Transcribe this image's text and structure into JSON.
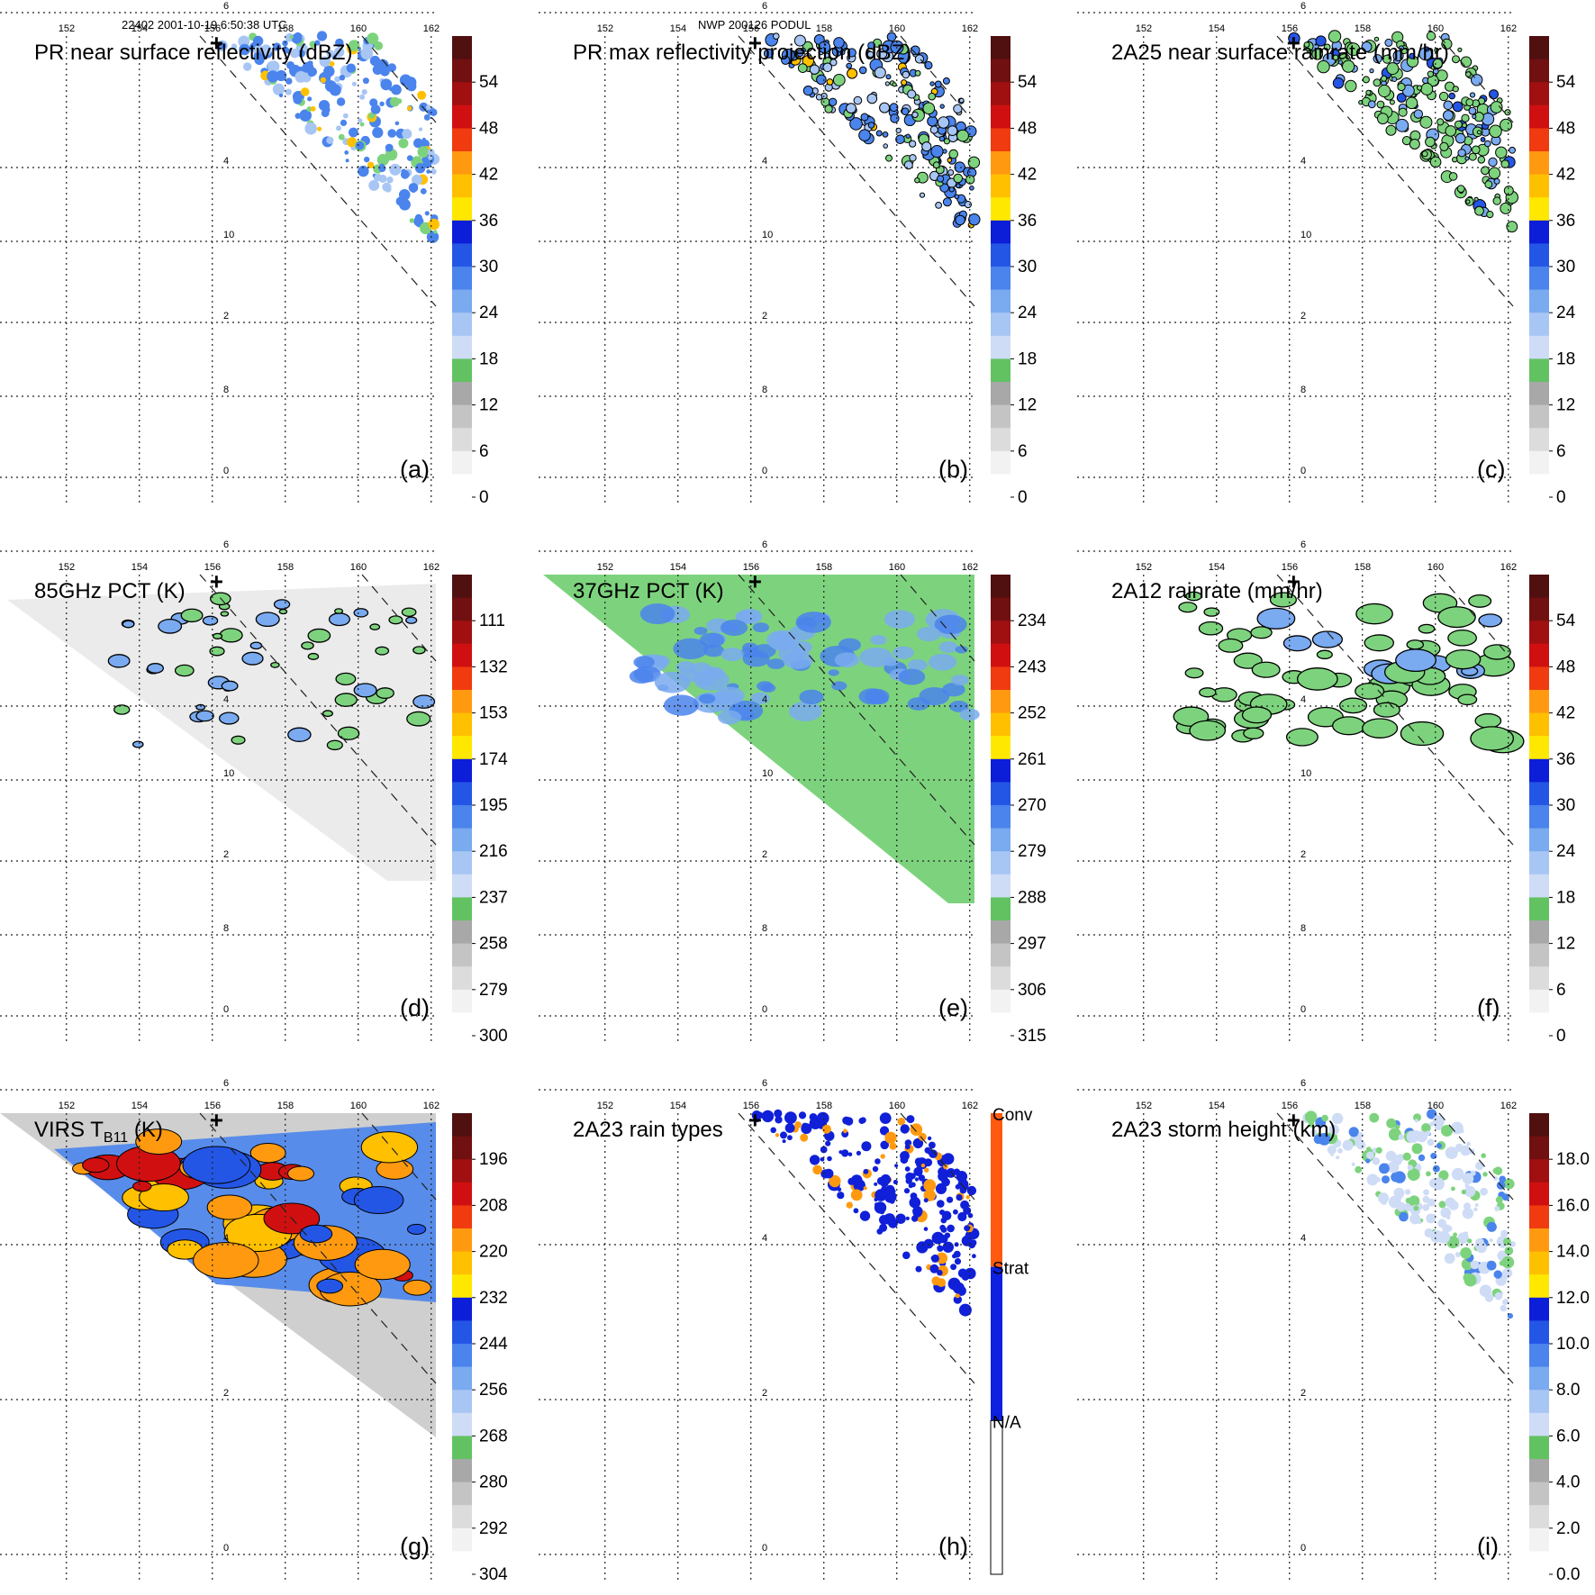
{
  "header": {
    "left": "22402 2001-10-19 6:50:38 UTC",
    "center": "NWP 200126 PODUL"
  },
  "map": {
    "lon_ticks": [
      "152",
      "154",
      "156",
      "158",
      "160",
      "162"
    ],
    "lat_ticks": [
      "0",
      "2",
      "4",
      "6",
      "8",
      "10"
    ],
    "center_marker": "+"
  },
  "panels": [
    {
      "id": "a",
      "title": "PR near surface reflectivity (dBZ)",
      "label": "(a)",
      "field": "swath",
      "colorbar": {
        "type": "continuous",
        "min": 0,
        "max": 60,
        "ticks": [
          "54",
          "48",
          "42",
          "36",
          "30",
          "24",
          "18",
          "12",
          "6",
          "0"
        ]
      }
    },
    {
      "id": "b",
      "title": "PR max reflectivity projection (dBZ)",
      "label": "(b)",
      "field": "swath",
      "colorbar": {
        "type": "continuous",
        "min": 0,
        "max": 60,
        "ticks": [
          "54",
          "48",
          "42",
          "36",
          "30",
          "24",
          "18",
          "12",
          "6",
          "0"
        ]
      }
    },
    {
      "id": "c",
      "title": "2A25 near surface rainrate (mm/hr)",
      "label": "(c)",
      "field": "swath",
      "colorbar": {
        "type": "continuous",
        "min": 0,
        "max": 60,
        "ticks": [
          "54",
          "48",
          "42",
          "36",
          "30",
          "24",
          "18",
          "12",
          "6",
          "0"
        ]
      }
    },
    {
      "id": "d",
      "title": "85GHz PCT (K)",
      "label": "(d)",
      "field": "tmi-gray",
      "colorbar": {
        "type": "continuous",
        "min": 90,
        "max": 300,
        "ticks": [
          "111",
          "132",
          "153",
          "174",
          "195",
          "216",
          "237",
          "258",
          "279",
          "300"
        ]
      }
    },
    {
      "id": "e",
      "title": "37GHz PCT (K)",
      "label": "(e)",
      "field": "tmi-green",
      "colorbar": {
        "type": "continuous",
        "min": 225,
        "max": 315,
        "ticks": [
          "234",
          "243",
          "252",
          "261",
          "270",
          "279",
          "288",
          "297",
          "306",
          "315"
        ]
      }
    },
    {
      "id": "f",
      "title": "2A12 rainrate (mm/hr)",
      "label": "(f)",
      "field": "tmi-rain",
      "colorbar": {
        "type": "continuous",
        "min": 0,
        "max": 60,
        "ticks": [
          "54",
          "48",
          "42",
          "36",
          "30",
          "24",
          "18",
          "12",
          "6",
          "0"
        ]
      }
    },
    {
      "id": "g",
      "title": "VIRS T",
      "title_sub": "B11",
      "title_suffix": " (K)",
      "label": "(g)",
      "field": "virs",
      "colorbar": {
        "type": "continuous",
        "min": 184,
        "max": 304,
        "ticks": [
          "196",
          "208",
          "220",
          "232",
          "244",
          "256",
          "268",
          "280",
          "292",
          "304"
        ]
      }
    },
    {
      "id": "h",
      "title": "2A23 rain types",
      "label": "(h)",
      "field": "swath-types",
      "colorbar": {
        "type": "categorical",
        "labels": [
          "Conv",
          "Strat",
          "N/A"
        ],
        "colors": [
          "#ff5a10",
          "#1020e0",
          "#ffffff"
        ]
      }
    },
    {
      "id": "i",
      "title": "2A23 storm height (km)",
      "label": "(i)",
      "field": "swath-light",
      "colorbar": {
        "type": "continuous",
        "min": 0,
        "max": 20,
        "ticks": [
          "18.0",
          "16.0",
          "14.0",
          "12.0",
          "10.0",
          "8.0",
          "6.0",
          "4.0",
          "2.0",
          "0.0"
        ]
      }
    }
  ],
  "colors": {
    "ramp": [
      "#ffffff",
      "#f2f2f2",
      "#dcdcdc",
      "#c4c4c4",
      "#a8a8a8",
      "#7dd37d",
      "#62c262",
      "#cfdcf6",
      "#a8c6f4",
      "#7aaaf0",
      "#4a84ec",
      "#2456e6",
      "#0c1ed8",
      "#ffe800",
      "#ffc000",
      "#ff9a10",
      "#ff6a10",
      "#f03a10",
      "#d01010",
      "#a01010",
      "#701010",
      "#501010"
    ],
    "green_field": "#7dd37d",
    "blue_cells": "#2c64e8",
    "dark_blue": "#1020d8",
    "orange_core": "#ff9a10",
    "red_core": "#c81414"
  }
}
